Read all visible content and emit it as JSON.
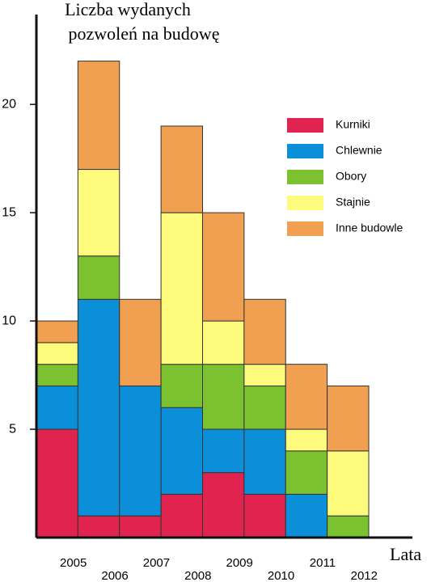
{
  "chart_data": {
    "type": "stacked_bar",
    "title": [
      "Liczba wydanych",
      "pozwoleń  na budowę"
    ],
    "x_label": "Lata",
    "categories": [
      "2005",
      "2006",
      "2007",
      "2008",
      "2009",
      "2010",
      "2011",
      "2012"
    ],
    "series": [
      {
        "name": "Kurniki",
        "color": "#e0234f",
        "values": [
          5,
          1,
          1,
          2,
          3,
          2,
          0,
          0
        ]
      },
      {
        "name": "Chlewnie",
        "color": "#0a8fd8",
        "values": [
          2,
          10,
          6,
          4,
          2,
          3,
          2,
          0
        ]
      },
      {
        "name": "Obory",
        "color": "#7cc230",
        "values": [
          1,
          2,
          0,
          2,
          3,
          2,
          2,
          1
        ]
      },
      {
        "name": "Stajnie",
        "color": "#fdfa7c",
        "values": [
          1,
          4,
          0,
          7,
          2,
          1,
          1,
          3
        ]
      },
      {
        "name": "Inne budowle",
        "color": "#f0a050",
        "values": [
          1,
          5,
          4,
          4,
          5,
          3,
          3,
          3
        ]
      }
    ],
    "ylim": [
      0,
      24
    ],
    "yticks": [
      5,
      10,
      15,
      20
    ]
  }
}
